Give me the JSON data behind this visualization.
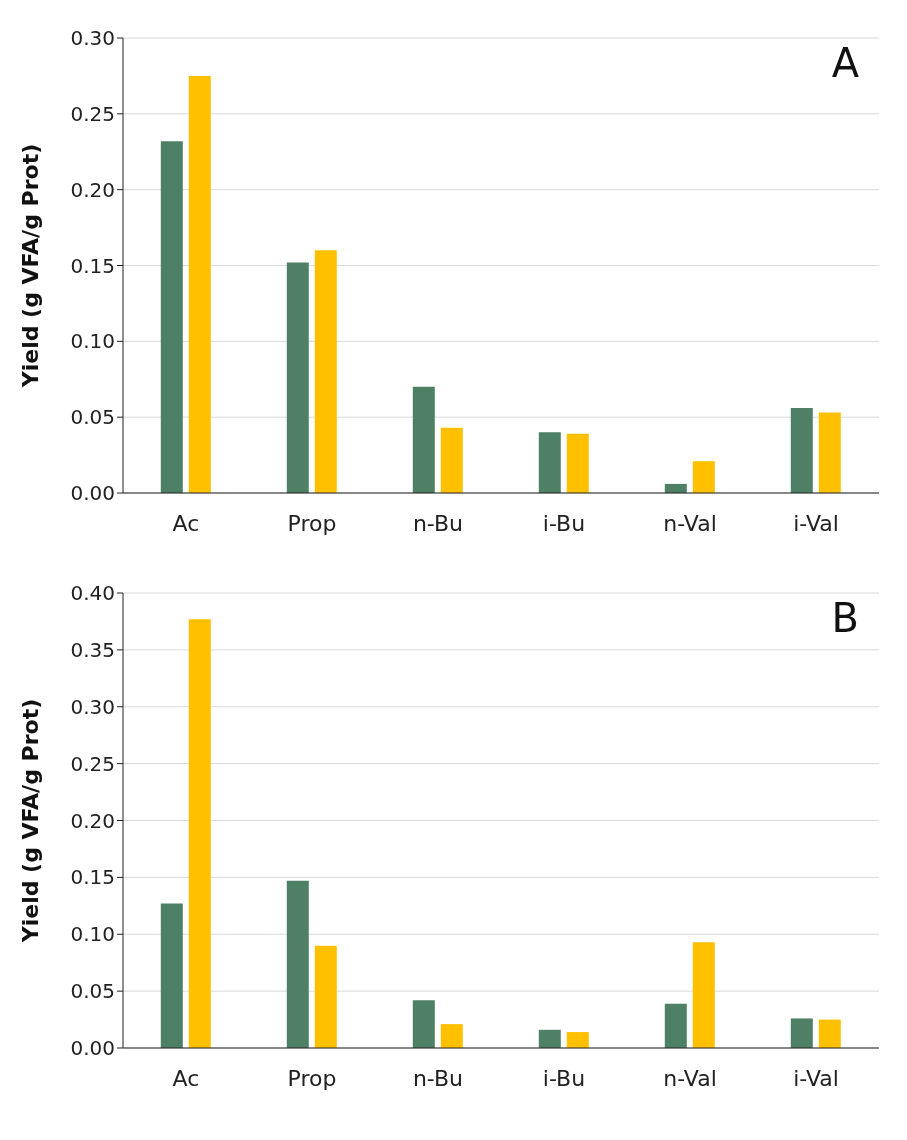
{
  "chart_data": [
    {
      "type": "bar",
      "ylabel": "Yield (g VFA/g Prot)",
      "categories": [
        "Ac",
        "Prop",
        "n-Bu",
        "i-Bu",
        "n-Val",
        "i-Val"
      ],
      "series": [
        {
          "color": "#4e8066",
          "values": [
            0.232,
            0.152,
            0.07,
            0.04,
            0.006,
            0.056
          ]
        },
        {
          "color": "#ffc000",
          "values": [
            0.275,
            0.16,
            0.043,
            0.039,
            0.021,
            0.053
          ]
        }
      ],
      "ylim": [
        0,
        0.3
      ],
      "yticks": [
        {
          "value": 0,
          "label": "0.00"
        },
        {
          "value": 0.05,
          "label": "0.05"
        },
        {
          "value": 0.1,
          "label": "0.10"
        },
        {
          "value": 0.15,
          "label": "0.15"
        },
        {
          "value": 0.2,
          "label": "0.20"
        },
        {
          "value": 0.25,
          "label": "0.25"
        },
        {
          "value": 0.3,
          "label": "0.30"
        }
      ],
      "grid": "y",
      "legend": false,
      "annotations": [
        "A"
      ]
    },
    {
      "type": "bar",
      "ylabel": "Yield (g VFA/g Prot)",
      "categories": [
        "Ac",
        "Prop",
        "n-Bu",
        "i-Bu",
        "n-Val",
        "i-Val"
      ],
      "series": [
        {
          "color": "#4e8066",
          "values": [
            0.127,
            0.147,
            0.042,
            0.016,
            0.039,
            0.026
          ]
        },
        {
          "color": "#ffc000",
          "values": [
            0.377,
            0.09,
            0.021,
            0.014,
            0.093,
            0.025
          ]
        }
      ],
      "ylim": [
        0,
        0.4
      ],
      "yticks": [
        {
          "value": 0,
          "label": "0.00"
        },
        {
          "value": 0.05,
          "label": "0.05"
        },
        {
          "value": 0.1,
          "label": "0.10"
        },
        {
          "value": 0.15,
          "label": "0.15"
        },
        {
          "value": 0.2,
          "label": "0.20"
        },
        {
          "value": 0.25,
          "label": "0.25"
        },
        {
          "value": 0.3,
          "label": "0.30"
        },
        {
          "value": 0.35,
          "label": "0.35"
        },
        {
          "value": 0.4,
          "label": "0.40"
        }
      ],
      "grid": "y",
      "legend": false,
      "annotations": [
        "B"
      ]
    }
  ]
}
